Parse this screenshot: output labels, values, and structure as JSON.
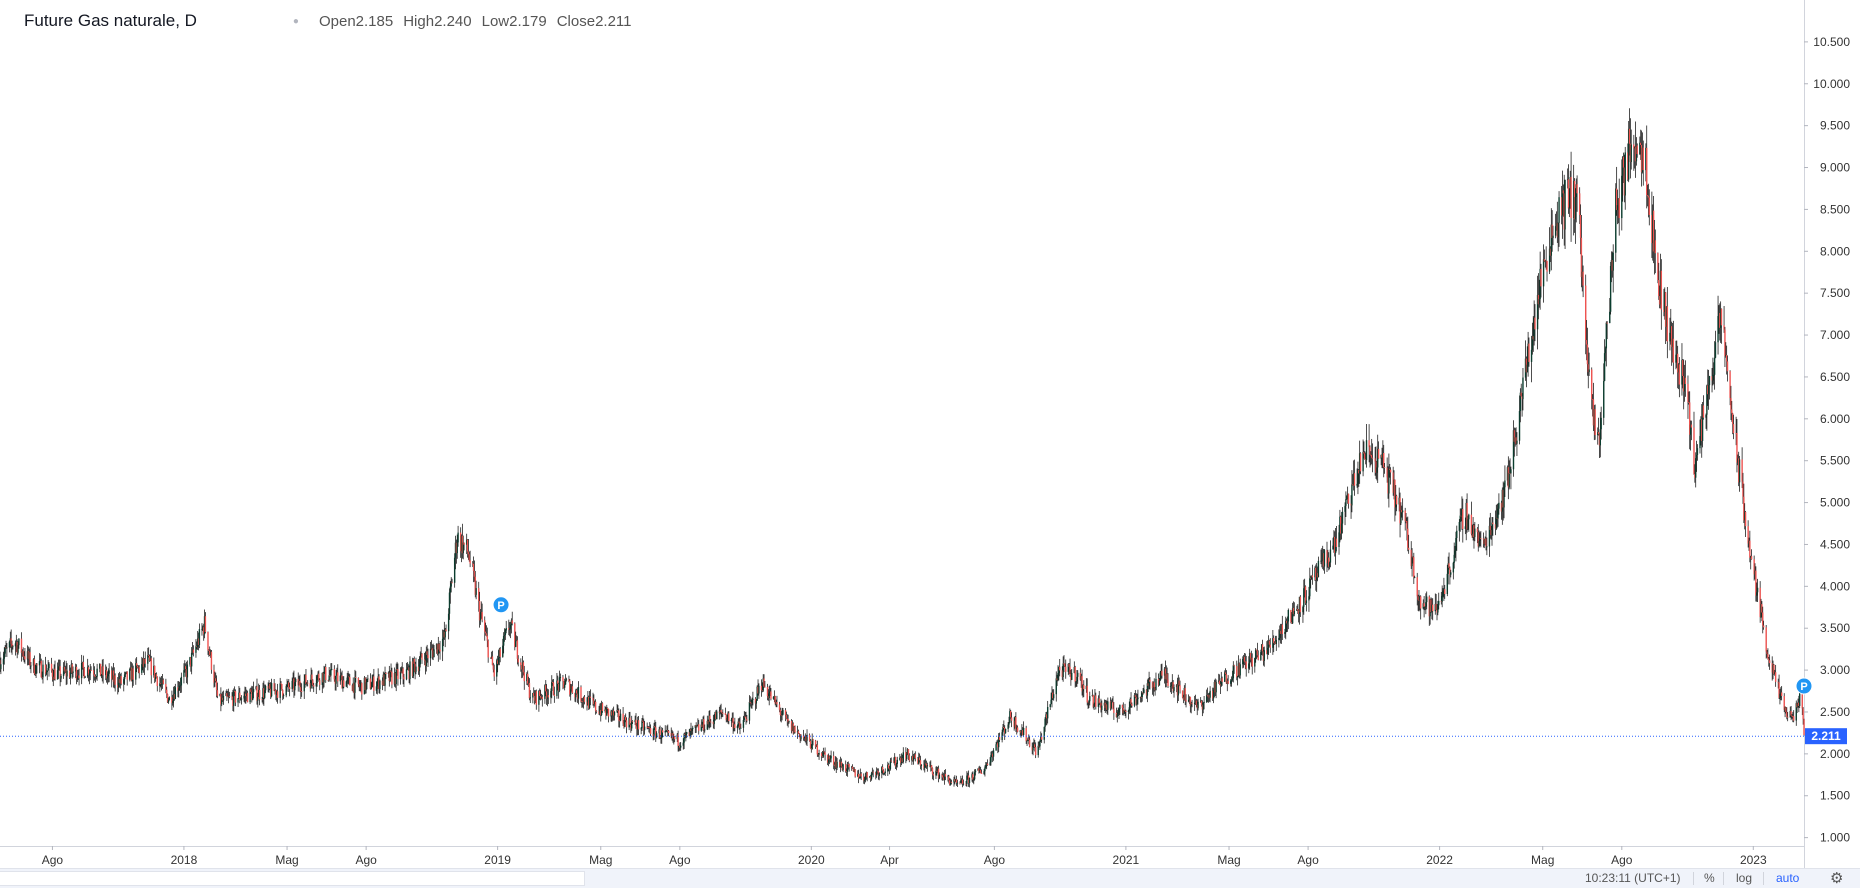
{
  "legend": {
    "title": "Future Gas naturale, D",
    "open_label": "Open",
    "open": "2.185",
    "high_label": "High",
    "high": "2.240",
    "low_label": "Low",
    "low": "2.179",
    "close_label": "Close",
    "close": "2.211"
  },
  "footer": {
    "time": "10:23:11 (UTC+1)",
    "percent": "%",
    "log": "log",
    "auto": "auto"
  },
  "colors": {
    "up": "#26a69a",
    "up_dark": "#0b3d2e",
    "down": "#ef5350",
    "dark": "#222222",
    "price_line": "#2962ff",
    "marker": "#2196f3"
  },
  "chart_data": {
    "type": "candlestick",
    "title": "Future Gas naturale, D",
    "ylim": [
      0.9,
      11.0
    ],
    "yticks": [
      1.0,
      1.5,
      2.0,
      2.5,
      3.0,
      3.5,
      4.0,
      4.5,
      5.0,
      5.5,
      6.0,
      6.5,
      7.0,
      7.5,
      8.0,
      8.5,
      9.0,
      9.5,
      10.0,
      10.5
    ],
    "ytick_labels": [
      "1.000",
      "1.500",
      "2.000",
      "2.500",
      "3.000",
      "3.500",
      "4.000",
      "4.500",
      "5.000",
      "5.500",
      "6.000",
      "6.500",
      "7.000",
      "7.500",
      "8.000",
      "8.500",
      "9.000",
      "9.500",
      "10.000",
      "10.500"
    ],
    "xlim": [
      "2017-06-01",
      "2023-03-01"
    ],
    "xticks": [
      {
        "date": "2017-08-01",
        "label": "Ago"
      },
      {
        "date": "2018-01-01",
        "label": "2018"
      },
      {
        "date": "2018-05-01",
        "label": "Mag"
      },
      {
        "date": "2018-08-01",
        "label": "Ago"
      },
      {
        "date": "2019-01-01",
        "label": "2019"
      },
      {
        "date": "2019-05-01",
        "label": "Mag"
      },
      {
        "date": "2019-08-01",
        "label": "Ago"
      },
      {
        "date": "2020-01-01",
        "label": "2020"
      },
      {
        "date": "2020-04-01",
        "label": "Apr"
      },
      {
        "date": "2020-08-01",
        "label": "Ago"
      },
      {
        "date": "2021-01-01",
        "label": "2021"
      },
      {
        "date": "2021-05-01",
        "label": "Mag"
      },
      {
        "date": "2021-08-01",
        "label": "Ago"
      },
      {
        "date": "2022-01-01",
        "label": "2022"
      },
      {
        "date": "2022-05-01",
        "label": "Mag"
      },
      {
        "date": "2022-08-01",
        "label": "Ago"
      },
      {
        "date": "2023-01-01",
        "label": "2023"
      }
    ],
    "close_path": [
      [
        "2017-06-01",
        3.12
      ],
      [
        "2017-06-18",
        3.35
      ],
      [
        "2017-07-10",
        3.05
      ],
      [
        "2017-08-10",
        2.95
      ],
      [
        "2017-09-15",
        3.02
      ],
      [
        "2017-10-20",
        2.85
      ],
      [
        "2017-11-20",
        3.1
      ],
      [
        "2017-12-15",
        2.65
      ],
      [
        "2018-01-05",
        3.0
      ],
      [
        "2018-01-25",
        3.55
      ],
      [
        "2018-02-10",
        2.62
      ],
      [
        "2018-03-15",
        2.7
      ],
      [
        "2018-05-01",
        2.78
      ],
      [
        "2018-06-15",
        2.95
      ],
      [
        "2018-07-25",
        2.8
      ],
      [
        "2018-09-15",
        2.95
      ],
      [
        "2018-10-20",
        3.25
      ],
      [
        "2018-11-01",
        3.4
      ],
      [
        "2018-11-15",
        4.6
      ],
      [
        "2018-11-28",
        4.4
      ],
      [
        "2018-12-10",
        3.75
      ],
      [
        "2018-12-28",
        2.95
      ],
      [
        "2019-01-15",
        3.55
      ],
      [
        "2019-02-10",
        2.65
      ],
      [
        "2019-03-20",
        2.85
      ],
      [
        "2019-04-25",
        2.55
      ],
      [
        "2019-06-10",
        2.35
      ],
      [
        "2019-08-01",
        2.15
      ],
      [
        "2019-09-20",
        2.5
      ],
      [
        "2019-10-10",
        2.3
      ],
      [
        "2019-11-05",
        2.85
      ],
      [
        "2019-12-05",
        2.35
      ],
      [
        "2020-01-20",
        1.95
      ],
      [
        "2020-03-01",
        1.72
      ],
      [
        "2020-04-01",
        1.85
      ],
      [
        "2020-04-20",
        2.0
      ],
      [
        "2020-06-20",
        1.62
      ],
      [
        "2020-07-20",
        1.82
      ],
      [
        "2020-08-20",
        2.45
      ],
      [
        "2020-09-20",
        2.02
      ],
      [
        "2020-10-15",
        3.0
      ],
      [
        "2020-11-05",
        2.95
      ],
      [
        "2020-11-20",
        2.65
      ],
      [
        "2020-12-25",
        2.5
      ],
      [
        "2021-02-15",
        2.95
      ],
      [
        "2021-03-25",
        2.55
      ],
      [
        "2021-05-01",
        2.95
      ],
      [
        "2021-06-15",
        3.25
      ],
      [
        "2021-08-01",
        3.95
      ],
      [
        "2021-09-01",
        4.5
      ],
      [
        "2021-10-05",
        5.6
      ],
      [
        "2021-10-25",
        5.5
      ],
      [
        "2021-11-20",
        4.8
      ],
      [
        "2021-12-10",
        3.8
      ],
      [
        "2021-12-28",
        3.7
      ],
      [
        "2022-01-15",
        4.3
      ],
      [
        "2022-01-30",
        4.9
      ],
      [
        "2022-02-20",
        4.45
      ],
      [
        "2022-03-20",
        5.2
      ],
      [
        "2022-04-15",
        6.8
      ],
      [
        "2022-05-05",
        8.0
      ],
      [
        "2022-05-20",
        8.5
      ],
      [
        "2022-06-10",
        8.7
      ],
      [
        "2022-06-25",
        6.2
      ],
      [
        "2022-07-05",
        5.7
      ],
      [
        "2022-07-25",
        8.5
      ],
      [
        "2022-08-15",
        9.4
      ],
      [
        "2022-08-28",
        9.2
      ],
      [
        "2022-09-10",
        7.8
      ],
      [
        "2022-09-30",
        6.8
      ],
      [
        "2022-10-15",
        6.4
      ],
      [
        "2022-10-25",
        5.4
      ],
      [
        "2022-11-10",
        6.4
      ],
      [
        "2022-11-25",
        7.2
      ],
      [
        "2022-12-10",
        5.8
      ],
      [
        "2022-12-28",
        4.4
      ],
      [
        "2023-01-20",
        3.1
      ],
      [
        "2023-02-05",
        2.55
      ],
      [
        "2023-02-15",
        2.4
      ],
      [
        "2023-02-25",
        2.7
      ],
      [
        "2023-03-01",
        2.21
      ]
    ],
    "last_price": 2.211,
    "last_price_label": "2.211",
    "markers": [
      {
        "date": "2019-01-05",
        "value": 3.78,
        "label": "P"
      },
      {
        "date": "2023-03-01",
        "value": 2.81,
        "label": "P"
      }
    ],
    "legend_position": "top-left",
    "grid": false
  }
}
